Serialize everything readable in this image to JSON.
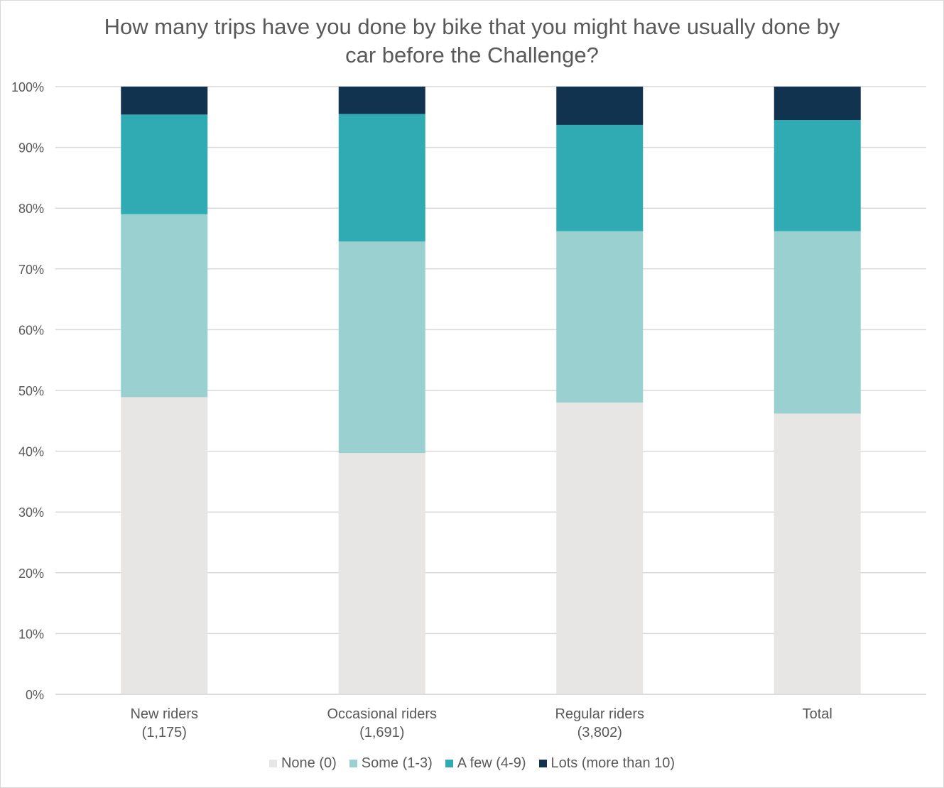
{
  "chart_data": {
    "type": "bar",
    "stacked": true,
    "title_lines": [
      "How many trips have you done by bike that you might have usually done by",
      "car before the Challenge?"
    ],
    "categories": [
      [
        "New riders",
        "(1,175)"
      ],
      [
        "Occasional riders",
        "(1,691)"
      ],
      [
        "Regular riders",
        "(3,802)"
      ],
      [
        "Total"
      ]
    ],
    "series": [
      {
        "name": "None (0)",
        "color": "#e7e6e4",
        "values": [
          48.9,
          39.7,
          48.0,
          46.2
        ]
      },
      {
        "name": "Some (1-3)",
        "color": "#9ad0d0",
        "values": [
          30.1,
          34.8,
          28.2,
          30.0
        ]
      },
      {
        "name": "A few (4-9)",
        "color": "#30abb3",
        "values": [
          16.4,
          21.0,
          17.5,
          18.3
        ]
      },
      {
        "name": "Lots (more than 10)",
        "color": "#12334f",
        "values": [
          4.6,
          4.5,
          6.3,
          5.5
        ]
      }
    ],
    "yticks": [
      "0%",
      "10%",
      "20%",
      "30%",
      "40%",
      "50%",
      "60%",
      "70%",
      "80%",
      "90%",
      "100%"
    ],
    "ylim": [
      0,
      100
    ],
    "grid": true,
    "legend_position": "bottom"
  }
}
